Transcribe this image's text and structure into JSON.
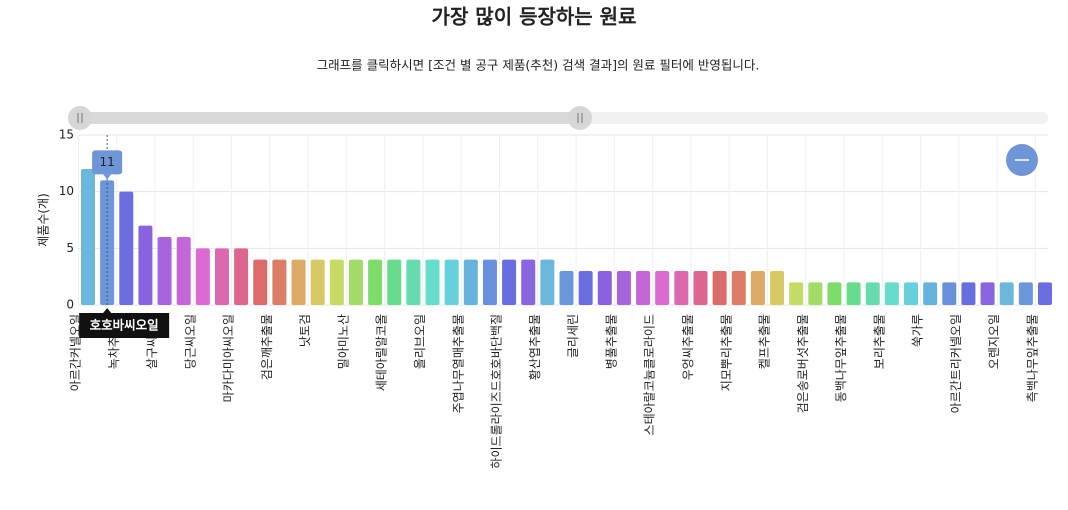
{
  "chart_data": {
    "type": "bar",
    "title": "가장 많이 등장하는 원료",
    "subtitle": "그래프를 클릭하시면 [조건 별 공구 제품(추천) 검색 결과]의 원료 필터에 반영됩니다.",
    "ylabel": "제품수(개)",
    "categories": [
      "아르간커넬오일",
      "호호바씨오일",
      "녹차추출물",
      null,
      "살구씨오일",
      null,
      "당근씨오일",
      null,
      "마카다미아씨오일",
      null,
      "검은깨추출물",
      null,
      "낫토검",
      null,
      "밀아미노산",
      null,
      "세테아릴알코올",
      null,
      "올리브오일",
      null,
      "주엽나무열매추출물",
      null,
      "하이드롤라이즈드호호바단백질",
      null,
      "황산엽추출물",
      null,
      "글리세린",
      null,
      "병풀추출물",
      null,
      "스테아랄코늄클로라이드",
      null,
      "우엉씨추출물",
      null,
      "지모뿌리추출물",
      null,
      "켈프추출물",
      null,
      "검은송로버섯추출물",
      null,
      "동백나무잎추출물",
      null,
      "보리추출물",
      null,
      "쑥가루",
      null,
      "아르간트리커넬오일",
      null,
      "오렌지오일",
      null,
      "측백나무잎추출물"
    ],
    "values": [
      12,
      11,
      10,
      7,
      6,
      6,
      5,
      5,
      5,
      4,
      4,
      4,
      4,
      4,
      4,
      4,
      4,
      4,
      4,
      4,
      4,
      4,
      4,
      4,
      4,
      3,
      3,
      3,
      3,
      3,
      3,
      3,
      3,
      3,
      3,
      3,
      3,
      2,
      2,
      2,
      2,
      2,
      2,
      2,
      2,
      2,
      2,
      2,
      2,
      2,
      2
    ],
    "palette": [
      "#6cb8dc",
      "#6a96dc",
      "#6a6ee0",
      "#8a62e0",
      "#a864dc",
      "#c466d8",
      "#dc6ad0",
      "#dc68b0",
      "#dc6690",
      "#dc6a6a",
      "#dc7e66",
      "#dcaa66",
      "#d8c866",
      "#c4dc66",
      "#a2dc66",
      "#7edc6a",
      "#66dc8c",
      "#66dcae",
      "#66dccc",
      "#66d0dc",
      "#66b2dc",
      "#6890dc",
      "#686ee0",
      "#8866e0"
    ],
    "ylim": [
      0,
      15
    ],
    "yticks": [
      0,
      5,
      10,
      15
    ],
    "grid": true,
    "tooltip": {
      "index": 1
    }
  }
}
